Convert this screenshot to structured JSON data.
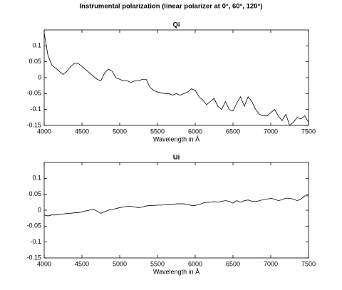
{
  "title": "Instrumental polarization (linear polarizer at 0°, 60°, 120°)",
  "chart_data": [
    {
      "type": "line",
      "title": "Qi",
      "xlabel": "Wavelength in Å",
      "x": [
        4000,
        4050,
        4100,
        4150,
        4200,
        4250,
        4300,
        4350,
        4400,
        4450,
        4500,
        4550,
        4600,
        4650,
        4700,
        4750,
        4800,
        4850,
        4900,
        4950,
        5000,
        5050,
        5100,
        5150,
        5200,
        5250,
        5300,
        5350,
        5400,
        5450,
        5500,
        5550,
        5600,
        5650,
        5700,
        5750,
        5800,
        5850,
        5900,
        5950,
        6000,
        6050,
        6100,
        6150,
        6200,
        6250,
        6300,
        6350,
        6400,
        6450,
        6500,
        6550,
        6600,
        6650,
        6700,
        6750,
        6800,
        6850,
        6900,
        6950,
        7000,
        7050,
        7100,
        7150,
        7200,
        7250,
        7300,
        7350,
        7400,
        7450,
        7500
      ],
      "series": [
        {
          "name": "Qi",
          "color": "#000000",
          "values": [
            0.14,
            0.07,
            0.04,
            0.03,
            0.02,
            0.01,
            0.02,
            0.035,
            0.045,
            0.045,
            0.035,
            0.025,
            0.015,
            0.005,
            -0.005,
            -0.01,
            0.015,
            0.027,
            0.02,
            0.0,
            -0.005,
            -0.01,
            -0.01,
            -0.015,
            -0.01,
            -0.01,
            -0.005,
            -0.005,
            -0.03,
            -0.04,
            -0.045,
            -0.048,
            -0.05,
            -0.05,
            -0.055,
            -0.05,
            -0.055,
            -0.05,
            -0.045,
            -0.035,
            -0.04,
            -0.06,
            -0.07,
            -0.085,
            -0.075,
            -0.065,
            -0.09,
            -0.1,
            -0.075,
            -0.1,
            -0.105,
            -0.08,
            -0.06,
            -0.09,
            -0.06,
            -0.075,
            -0.1,
            -0.115,
            -0.12,
            -0.12,
            -0.11,
            -0.1,
            -0.12,
            -0.135,
            -0.115,
            -0.15,
            -0.14,
            -0.125,
            -0.13,
            -0.12,
            -0.14
          ]
        }
      ],
      "xlim": [
        4000,
        7500
      ],
      "xticks": [
        4000,
        4500,
        5000,
        5500,
        6000,
        6500,
        7000,
        7500
      ],
      "ylim": [
        -0.15,
        0.15
      ],
      "yticks": [
        -0.15,
        -0.1,
        -0.05,
        0,
        0.05,
        0.1
      ],
      "grid": false
    },
    {
      "type": "line",
      "title": "Ui",
      "xlabel": "Wavelength in Å",
      "x": [
        4000,
        4050,
        4100,
        4150,
        4200,
        4250,
        4300,
        4350,
        4400,
        4450,
        4500,
        4550,
        4600,
        4650,
        4700,
        4750,
        4800,
        4850,
        4900,
        4950,
        5000,
        5050,
        5100,
        5150,
        5200,
        5250,
        5300,
        5350,
        5400,
        5450,
        5500,
        5550,
        5600,
        5650,
        5700,
        5750,
        5800,
        5850,
        5900,
        5950,
        6000,
        6050,
        6100,
        6150,
        6200,
        6250,
        6300,
        6350,
        6400,
        6450,
        6500,
        6550,
        6600,
        6650,
        6700,
        6750,
        6800,
        6850,
        6900,
        6950,
        7000,
        7050,
        7100,
        7150,
        7200,
        7250,
        7300,
        7350,
        7400,
        7450,
        7500
      ],
      "series": [
        {
          "name": "Ui",
          "color": "#000000",
          "values": [
            -0.015,
            -0.018,
            -0.015,
            -0.015,
            -0.013,
            -0.012,
            -0.01,
            -0.01,
            -0.008,
            -0.008,
            -0.005,
            -0.002,
            0.0,
            0.003,
            -0.003,
            -0.01,
            -0.005,
            0.0,
            0.002,
            0.005,
            0.008,
            0.01,
            0.012,
            0.012,
            0.01,
            0.008,
            0.01,
            0.013,
            0.015,
            0.015,
            0.016,
            0.016,
            0.017,
            0.018,
            0.018,
            0.02,
            0.02,
            0.02,
            0.018,
            0.015,
            0.015,
            0.018,
            0.022,
            0.025,
            0.025,
            0.027,
            0.025,
            0.028,
            0.03,
            0.028,
            0.022,
            0.03,
            0.025,
            0.03,
            0.032,
            0.028,
            0.027,
            0.03,
            0.033,
            0.035,
            0.037,
            0.035,
            0.03,
            0.033,
            0.038,
            0.037,
            0.035,
            0.03,
            0.035,
            0.045,
            0.045
          ]
        }
      ],
      "xlim": [
        4000,
        7500
      ],
      "xticks": [
        4000,
        4500,
        5000,
        5500,
        6000,
        6500,
        7000,
        7500
      ],
      "ylim": [
        -0.15,
        0.15
      ],
      "yticks": [
        -0.15,
        -0.1,
        -0.05,
        0,
        0.05,
        0.1
      ],
      "grid": false
    }
  ]
}
